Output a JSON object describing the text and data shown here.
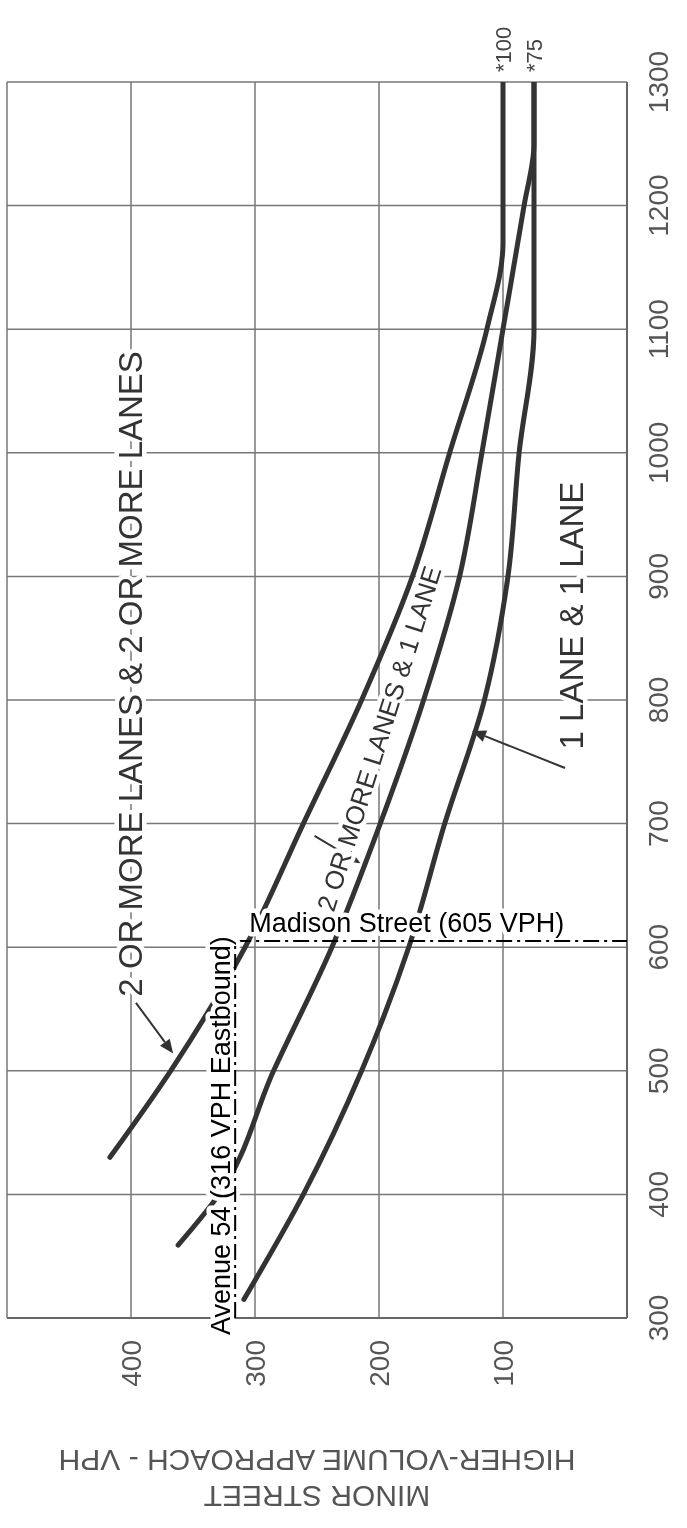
{
  "chart_data": {
    "type": "line",
    "xlabel": "MINOR STREET\nHIGHER-VOLUME APPROACH - VPH",
    "xlim": [
      500,
      0
    ],
    "xticks": [
      400,
      300,
      200,
      100
    ],
    "ylim": [
      300,
      1300
    ],
    "yticks": [
      300,
      400,
      500,
      600,
      700,
      800,
      900,
      1000,
      1100,
      1200,
      1300
    ],
    "grid": true,
    "marker": "none",
    "line_style": "solid",
    "series": [
      {
        "name": "2 OR MORE LANES & 2 OR MORE LANES",
        "color": "#333333",
        "x": [
          417,
          368,
          308,
          261,
          214,
          173,
          143,
          113,
          100,
          100
        ],
        "values": [
          430,
          500,
          600,
          700,
          800,
          900,
          1000,
          1100,
          1170,
          1300
        ]
      },
      {
        "name": "2 OR MORE LANES & 1 LANE",
        "color": "#333333",
        "x": [
          362,
          329,
          285,
          238,
          199,
          164,
          135,
          117,
          100,
          83,
          75,
          75
        ],
        "values": [
          359,
          400,
          500,
          600,
          700,
          800,
          900,
          1000,
          1100,
          1200,
          1250,
          1300
        ]
      },
      {
        "name": "1 LANE & 1 LANE",
        "color": "#333333",
        "x": [
          309,
          261,
          214,
          176,
          147,
          115,
          96,
          87,
          75,
          75
        ],
        "values": [
          315,
          400,
          500,
          600,
          700,
          800,
          900,
          1000,
          1100,
          1300
        ]
      }
    ],
    "ref_lines": [
      {
        "axis": "y",
        "value": 605,
        "label": "Madison Street (605 VPH)",
        "color": "#000000",
        "line_style": "dashed"
      },
      {
        "axis": "x",
        "value": 316,
        "label": "Avenue 54 (316 VPH Eastbound)",
        "color": "#000000",
        "line_style": "dashed"
      }
    ],
    "annotations": [
      {
        "text": "*100",
        "x": 100,
        "y": 1300
      },
      {
        "text": "*75",
        "x": 75,
        "y": 1300
      }
    ]
  }
}
